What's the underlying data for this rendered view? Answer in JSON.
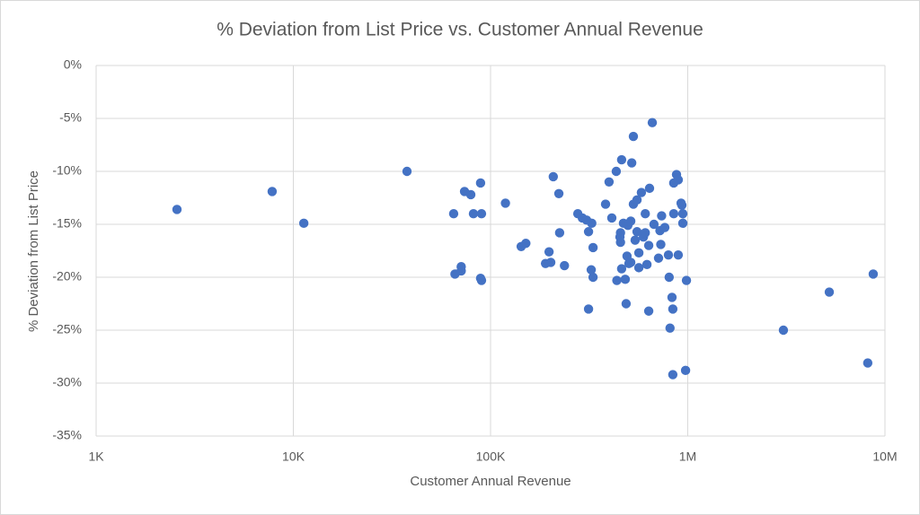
{
  "chart_data": {
    "type": "scatter",
    "title": "% Deviation from List Price vs. Customer Annual Revenue",
    "x_label": "Customer Annual Revenue",
    "y_label": "% Deviation from List Price",
    "log_x": true,
    "grid": true,
    "color": "#4472c4",
    "xlim": [
      1000,
      10000000
    ],
    "xticks": [
      {
        "value": 1000,
        "label": "1K"
      },
      {
        "value": 10000,
        "label": "10K"
      },
      {
        "value": 100000,
        "label": "100K"
      },
      {
        "value": 1000000,
        "label": "1M"
      },
      {
        "value": 10000000,
        "label": "10M"
      }
    ],
    "ylim": [
      -35,
      0
    ],
    "yticks": [
      {
        "value": -35,
        "label": "-35%"
      },
      {
        "value": -30,
        "label": "-30%"
      },
      {
        "value": -25,
        "label": "-25%"
      },
      {
        "value": -20,
        "label": "-20%"
      },
      {
        "value": -15,
        "label": "-15%"
      },
      {
        "value": -10,
        "label": "-10%"
      },
      {
        "value": -5,
        "label": "-5%"
      },
      {
        "value": 0,
        "label": "0%"
      }
    ],
    "x": [
      2570,
      7810,
      11300,
      37700,
      65000,
      66000,
      71000,
      71000,
      73800,
      79400,
      81900,
      89000,
      90000,
      89000,
      90000,
      119000,
      143000,
      151000,
      190000,
      198000,
      202000,
      208000,
      222000,
      224000,
      237000,
      277000,
      292000,
      307000,
      314000,
      314000,
      324000,
      326000,
      331000,
      331000,
      383000,
      399000,
      412000,
      434000,
      437000,
      453000,
      456000,
      456000,
      462000,
      462000,
      472000,
      482000,
      487000,
      492000,
      497000,
      503000,
      514000,
      514000,
      520000,
      530000,
      530000,
      541000,
      553000,
      553000,
      565000,
      565000,
      582000,
      596000,
      609000,
      609000,
      621000,
      634000,
      640000,
      634000,
      661000,
      674000,
      711000,
      723000,
      730000,
      737000,
      765000,
      798000,
      805000,
      813000,
      832000,
      840000,
      840000,
      849000,
      849000,
      877000,
      895000,
      895000,
      925000,
      934000,
      944000,
      944000,
      975000,
      985000,
      3055000,
      5220000,
      8180000,
      8720000
    ],
    "values": [
      -13.6,
      -11.9,
      -14.9,
      -10.0,
      -14.0,
      -19.7,
      -19.4,
      -19.0,
      -11.9,
      -12.2,
      -14.0,
      -11.1,
      -14.0,
      -20.1,
      -20.3,
      -13.0,
      -17.1,
      -16.8,
      -18.7,
      -17.6,
      -18.6,
      -10.5,
      -12.1,
      -15.8,
      -18.9,
      -14.0,
      -14.4,
      -14.6,
      -15.7,
      -23.0,
      -19.3,
      -14.9,
      -17.2,
      -20.0,
      -13.1,
      -11.0,
      -14.4,
      -10.0,
      -20.3,
      -16.2,
      -15.8,
      -16.7,
      -8.9,
      -19.2,
      -14.9,
      -20.2,
      -22.5,
      -18.0,
      -15.1,
      -18.7,
      -14.7,
      -18.6,
      -9.2,
      -6.7,
      -13.1,
      -16.5,
      -12.7,
      -15.7,
      -19.1,
      -17.7,
      -12.0,
      -16.2,
      -15.8,
      -14.0,
      -18.8,
      -17.0,
      -11.6,
      -23.2,
      -5.4,
      -15.0,
      -18.2,
      -15.6,
      -16.9,
      -14.2,
      -15.3,
      -17.9,
      -20.0,
      -24.8,
      -21.9,
      -23.0,
      -29.2,
      -11.1,
      -14.0,
      -10.3,
      -10.8,
      -17.9,
      -13.0,
      -13.2,
      -14.0,
      -14.9,
      -28.8,
      -20.3,
      -25.0,
      -21.4,
      -28.1,
      -19.7
    ]
  }
}
